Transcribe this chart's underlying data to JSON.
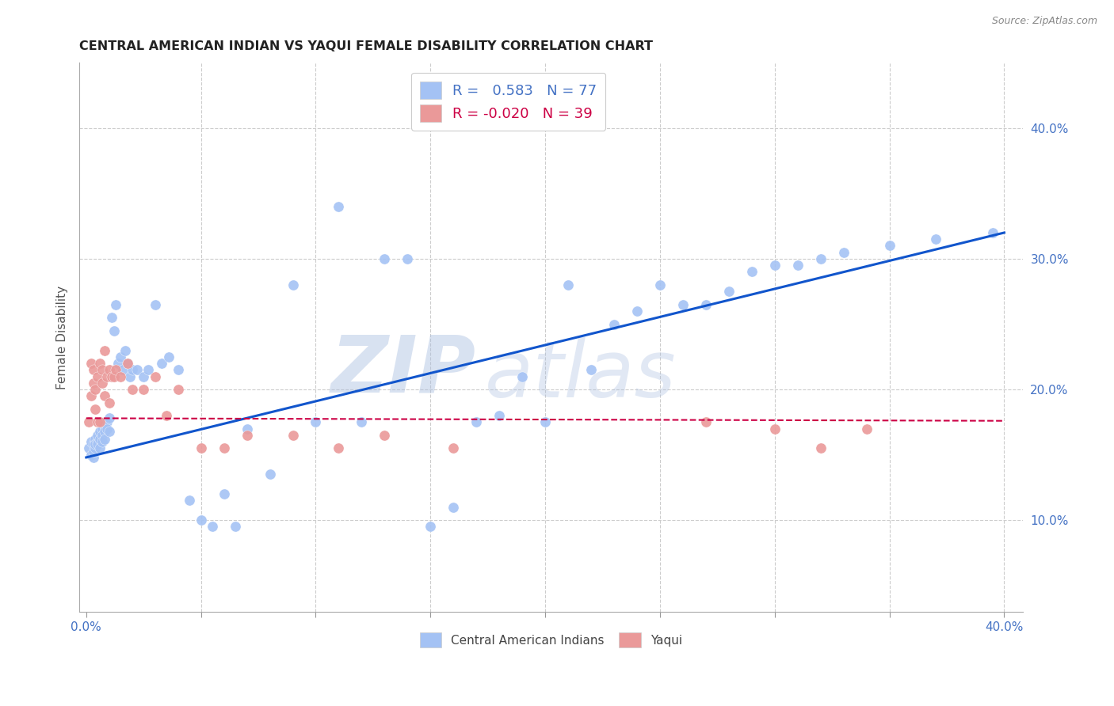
{
  "title": "CENTRAL AMERICAN INDIAN VS YAQUI FEMALE DISABILITY CORRELATION CHART",
  "source": "Source: ZipAtlas.com",
  "ylabel": "Female Disability",
  "x_ticks": [
    0.0,
    0.05,
    0.1,
    0.15,
    0.2,
    0.25,
    0.3,
    0.35,
    0.4
  ],
  "y_ticks_right": [
    "40.0%",
    "30.0%",
    "20.0%",
    "10.0%"
  ],
  "y_ticks_right_vals": [
    0.4,
    0.3,
    0.2,
    0.1
  ],
  "xlim": [
    -0.003,
    0.408
  ],
  "ylim": [
    0.03,
    0.45
  ],
  "blue_color": "#a4c2f4",
  "pink_color": "#ea9999",
  "line_blue": "#1155cc",
  "line_pink": "#cc0044",
  "watermark_zip": "ZIP",
  "watermark_atlas": "atlas",
  "blue_scatter_x": [
    0.001,
    0.002,
    0.002,
    0.003,
    0.003,
    0.003,
    0.004,
    0.004,
    0.004,
    0.005,
    0.005,
    0.005,
    0.006,
    0.006,
    0.006,
    0.007,
    0.007,
    0.007,
    0.008,
    0.008,
    0.008,
    0.009,
    0.009,
    0.01,
    0.01,
    0.011,
    0.012,
    0.013,
    0.014,
    0.015,
    0.016,
    0.017,
    0.018,
    0.019,
    0.02,
    0.022,
    0.025,
    0.027,
    0.03,
    0.033,
    0.036,
    0.04,
    0.045,
    0.05,
    0.055,
    0.06,
    0.065,
    0.07,
    0.08,
    0.09,
    0.1,
    0.11,
    0.12,
    0.13,
    0.14,
    0.15,
    0.16,
    0.17,
    0.18,
    0.19,
    0.2,
    0.21,
    0.22,
    0.23,
    0.24,
    0.25,
    0.26,
    0.27,
    0.28,
    0.29,
    0.3,
    0.31,
    0.32,
    0.33,
    0.35,
    0.37,
    0.395
  ],
  "blue_scatter_y": [
    0.155,
    0.16,
    0.15,
    0.148,
    0.152,
    0.158,
    0.155,
    0.162,
    0.158,
    0.16,
    0.165,
    0.158,
    0.162,
    0.168,
    0.155,
    0.17,
    0.165,
    0.16,
    0.172,
    0.168,
    0.162,
    0.175,
    0.17,
    0.168,
    0.178,
    0.255,
    0.245,
    0.265,
    0.22,
    0.225,
    0.215,
    0.23,
    0.22,
    0.21,
    0.215,
    0.215,
    0.21,
    0.215,
    0.265,
    0.22,
    0.225,
    0.215,
    0.115,
    0.1,
    0.095,
    0.12,
    0.095,
    0.17,
    0.135,
    0.28,
    0.175,
    0.34,
    0.175,
    0.3,
    0.3,
    0.095,
    0.11,
    0.175,
    0.18,
    0.21,
    0.175,
    0.28,
    0.215,
    0.25,
    0.26,
    0.28,
    0.265,
    0.265,
    0.275,
    0.29,
    0.295,
    0.295,
    0.3,
    0.305,
    0.31,
    0.315,
    0.32
  ],
  "pink_scatter_x": [
    0.001,
    0.002,
    0.002,
    0.003,
    0.003,
    0.004,
    0.004,
    0.005,
    0.005,
    0.006,
    0.006,
    0.007,
    0.007,
    0.008,
    0.008,
    0.009,
    0.01,
    0.01,
    0.011,
    0.012,
    0.013,
    0.015,
    0.018,
    0.02,
    0.025,
    0.03,
    0.035,
    0.04,
    0.05,
    0.06,
    0.07,
    0.09,
    0.11,
    0.13,
    0.16,
    0.27,
    0.3,
    0.32,
    0.34
  ],
  "pink_scatter_y": [
    0.175,
    0.22,
    0.195,
    0.205,
    0.215,
    0.2,
    0.185,
    0.21,
    0.175,
    0.22,
    0.175,
    0.205,
    0.215,
    0.23,
    0.195,
    0.21,
    0.215,
    0.19,
    0.21,
    0.21,
    0.215,
    0.21,
    0.22,
    0.2,
    0.2,
    0.21,
    0.18,
    0.2,
    0.155,
    0.155,
    0.165,
    0.165,
    0.155,
    0.165,
    0.155,
    0.175,
    0.17,
    0.155,
    0.17
  ],
  "blue_line_x": [
    0.0,
    0.4
  ],
  "blue_line_y": [
    0.148,
    0.32
  ],
  "pink_line_x": [
    0.0,
    0.4
  ],
  "pink_line_y": [
    0.178,
    0.176
  ],
  "background_color": "#ffffff",
  "grid_color": "#cccccc"
}
